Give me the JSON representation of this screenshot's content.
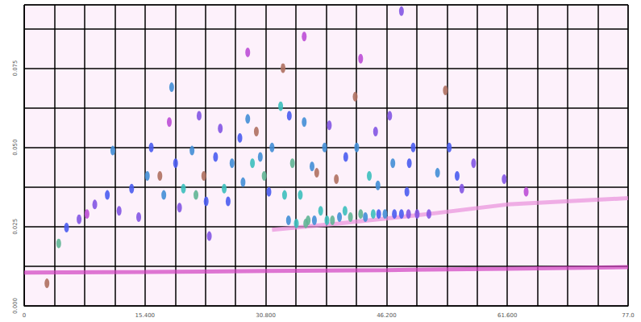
{
  "chart_data": {
    "type": "scatter",
    "xlim": [
      0,
      77
    ],
    "xticks": [
      {
        "value": 0,
        "label": "0"
      },
      {
        "value": 15.4,
        "label": "15.400"
      },
      {
        "value": 30.8,
        "label": "30.800"
      },
      {
        "value": 46.2,
        "label": "46.200"
      },
      {
        "value": 61.6,
        "label": "61.600"
      },
      {
        "value": 77,
        "label": "77.0"
      }
    ],
    "ylim": [
      0,
      0.095
    ],
    "yticks": [
      {
        "value": 0,
        "label": "0.000"
      },
      {
        "value": 0.025,
        "label": "0.025"
      },
      {
        "value": 0.05,
        "label": "0.050"
      },
      {
        "value": 0.075,
        "label": "0.075"
      }
    ],
    "grid": true,
    "zlim": [
      0,
      10
    ],
    "series": [
      {
        "type": "line",
        "color": "#d040c0",
        "values": [
          [
            0,
            0.0105
          ],
          [
            15.4,
            0.0107
          ],
          [
            30.8,
            0.011
          ],
          [
            46.2,
            0.0113
          ],
          [
            61.6,
            0.0117
          ],
          [
            77,
            0.0122
          ]
        ]
      },
      {
        "type": "line",
        "color": "#e890dc",
        "values": [
          [
            31.6,
            0.024
          ],
          [
            40,
            0.026
          ],
          [
            51.6,
            0.029
          ],
          [
            61.6,
            0.032
          ],
          [
            77,
            0.034
          ]
        ]
      },
      {
        "type": "scatter",
        "marker": "ellipse",
        "values": [
          [
            2.9,
            0.0071,
            9
          ],
          [
            4.4,
            0.0197,
            8
          ],
          [
            5.4,
            0.0247,
            5
          ],
          [
            7.0,
            0.0273,
            4
          ],
          [
            9.0,
            0.032,
            4
          ],
          [
            10.6,
            0.035,
            5
          ],
          [
            11.3,
            0.049,
            6
          ],
          [
            12.1,
            0.03,
            4
          ],
          [
            13.7,
            0.037,
            5
          ],
          [
            15.7,
            0.041,
            6
          ],
          [
            16.2,
            0.05,
            5
          ],
          [
            17.3,
            0.041,
            9
          ],
          [
            17.8,
            0.035,
            6
          ],
          [
            18.8,
            0.069,
            6
          ],
          [
            19.3,
            0.045,
            5
          ],
          [
            20.3,
            0.037,
            7
          ],
          [
            21.4,
            0.049,
            6
          ],
          [
            21.9,
            0.035,
            8
          ],
          [
            22.9,
            0.041,
            9
          ],
          [
            23.6,
            0.022,
            4
          ],
          [
            24.4,
            0.047,
            5
          ],
          [
            25.5,
            0.037,
            7
          ],
          [
            26.5,
            0.045,
            6
          ],
          [
            27.5,
            0.053,
            5
          ],
          [
            28.5,
            0.059,
            6
          ],
          [
            29.1,
            0.045,
            7
          ],
          [
            29.6,
            0.055,
            9
          ],
          [
            30.1,
            0.047,
            6
          ],
          [
            30.6,
            0.041,
            8
          ],
          [
            31.6,
            0.05,
            6
          ],
          [
            32.7,
            0.063,
            7
          ],
          [
            33.0,
            0.075,
            9
          ],
          [
            33.2,
            0.035,
            7
          ],
          [
            33.7,
            0.027,
            6
          ],
          [
            34.2,
            0.045,
            8
          ],
          [
            35.2,
            0.035,
            7
          ],
          [
            35.7,
            0.058,
            6
          ],
          [
            36.2,
            0.027,
            8
          ],
          [
            37.3,
            0.042,
            9
          ],
          [
            37.8,
            0.03,
            7
          ],
          [
            38.3,
            0.05,
            6
          ],
          [
            39.3,
            0.027,
            8
          ],
          [
            39.8,
            0.04,
            9
          ],
          [
            40.9,
            0.03,
            7
          ],
          [
            42.2,
            0.066,
            9
          ],
          [
            42.4,
            0.05,
            6
          ],
          [
            42.9,
            0.029,
            8
          ],
          [
            44.0,
            0.041,
            7
          ],
          [
            44.5,
            0.029,
            7
          ],
          [
            46.0,
            0.029,
            6
          ],
          [
            47.0,
            0.045,
            6
          ],
          [
            48.1,
            0.029,
            5
          ],
          [
            49.1,
            0.045,
            5
          ],
          [
            49.6,
            0.05,
            5
          ],
          [
            50.1,
            0.029,
            4
          ],
          [
            51.6,
            0.029,
            4
          ],
          [
            52.7,
            0.042,
            6
          ],
          [
            53.7,
            0.068,
            9
          ],
          [
            54.2,
            0.05,
            5
          ],
          [
            55.2,
            0.041,
            5
          ],
          [
            55.8,
            0.037,
            4
          ],
          [
            57.3,
            0.045,
            4
          ],
          [
            61.2,
            0.04,
            4
          ],
          [
            64.0,
            0.036,
            3
          ],
          [
            28.5,
            0.08,
            3
          ],
          [
            42.9,
            0.078,
            3
          ],
          [
            48.1,
            0.093,
            4
          ],
          [
            35.7,
            0.085,
            3
          ],
          [
            34.7,
            0.026,
            7
          ],
          [
            35.9,
            0.026,
            8
          ],
          [
            37.0,
            0.027,
            6
          ],
          [
            38.6,
            0.027,
            7
          ],
          [
            40.2,
            0.028,
            6
          ],
          [
            41.6,
            0.028,
            8
          ],
          [
            43.5,
            0.028,
            6
          ],
          [
            45.2,
            0.029,
            5
          ],
          [
            47.2,
            0.029,
            5
          ],
          [
            49.0,
            0.029,
            4
          ],
          [
            26.0,
            0.033,
            5
          ],
          [
            27.9,
            0.039,
            6
          ],
          [
            31.2,
            0.036,
            5
          ],
          [
            36.7,
            0.044,
            6
          ],
          [
            41.0,
            0.047,
            5
          ],
          [
            45.1,
            0.038,
            6
          ],
          [
            48.8,
            0.036,
            5
          ],
          [
            23.2,
            0.033,
            5
          ],
          [
            19.8,
            0.031,
            4
          ],
          [
            14.6,
            0.028,
            4
          ],
          [
            8.0,
            0.029,
            3
          ],
          [
            33.8,
            0.06,
            5
          ],
          [
            38.9,
            0.057,
            4
          ],
          [
            44.8,
            0.055,
            4
          ],
          [
            46.6,
            0.06,
            4
          ],
          [
            25.0,
            0.056,
            4
          ],
          [
            22.3,
            0.06,
            4
          ],
          [
            18.5,
            0.058,
            3
          ]
        ]
      }
    ]
  }
}
